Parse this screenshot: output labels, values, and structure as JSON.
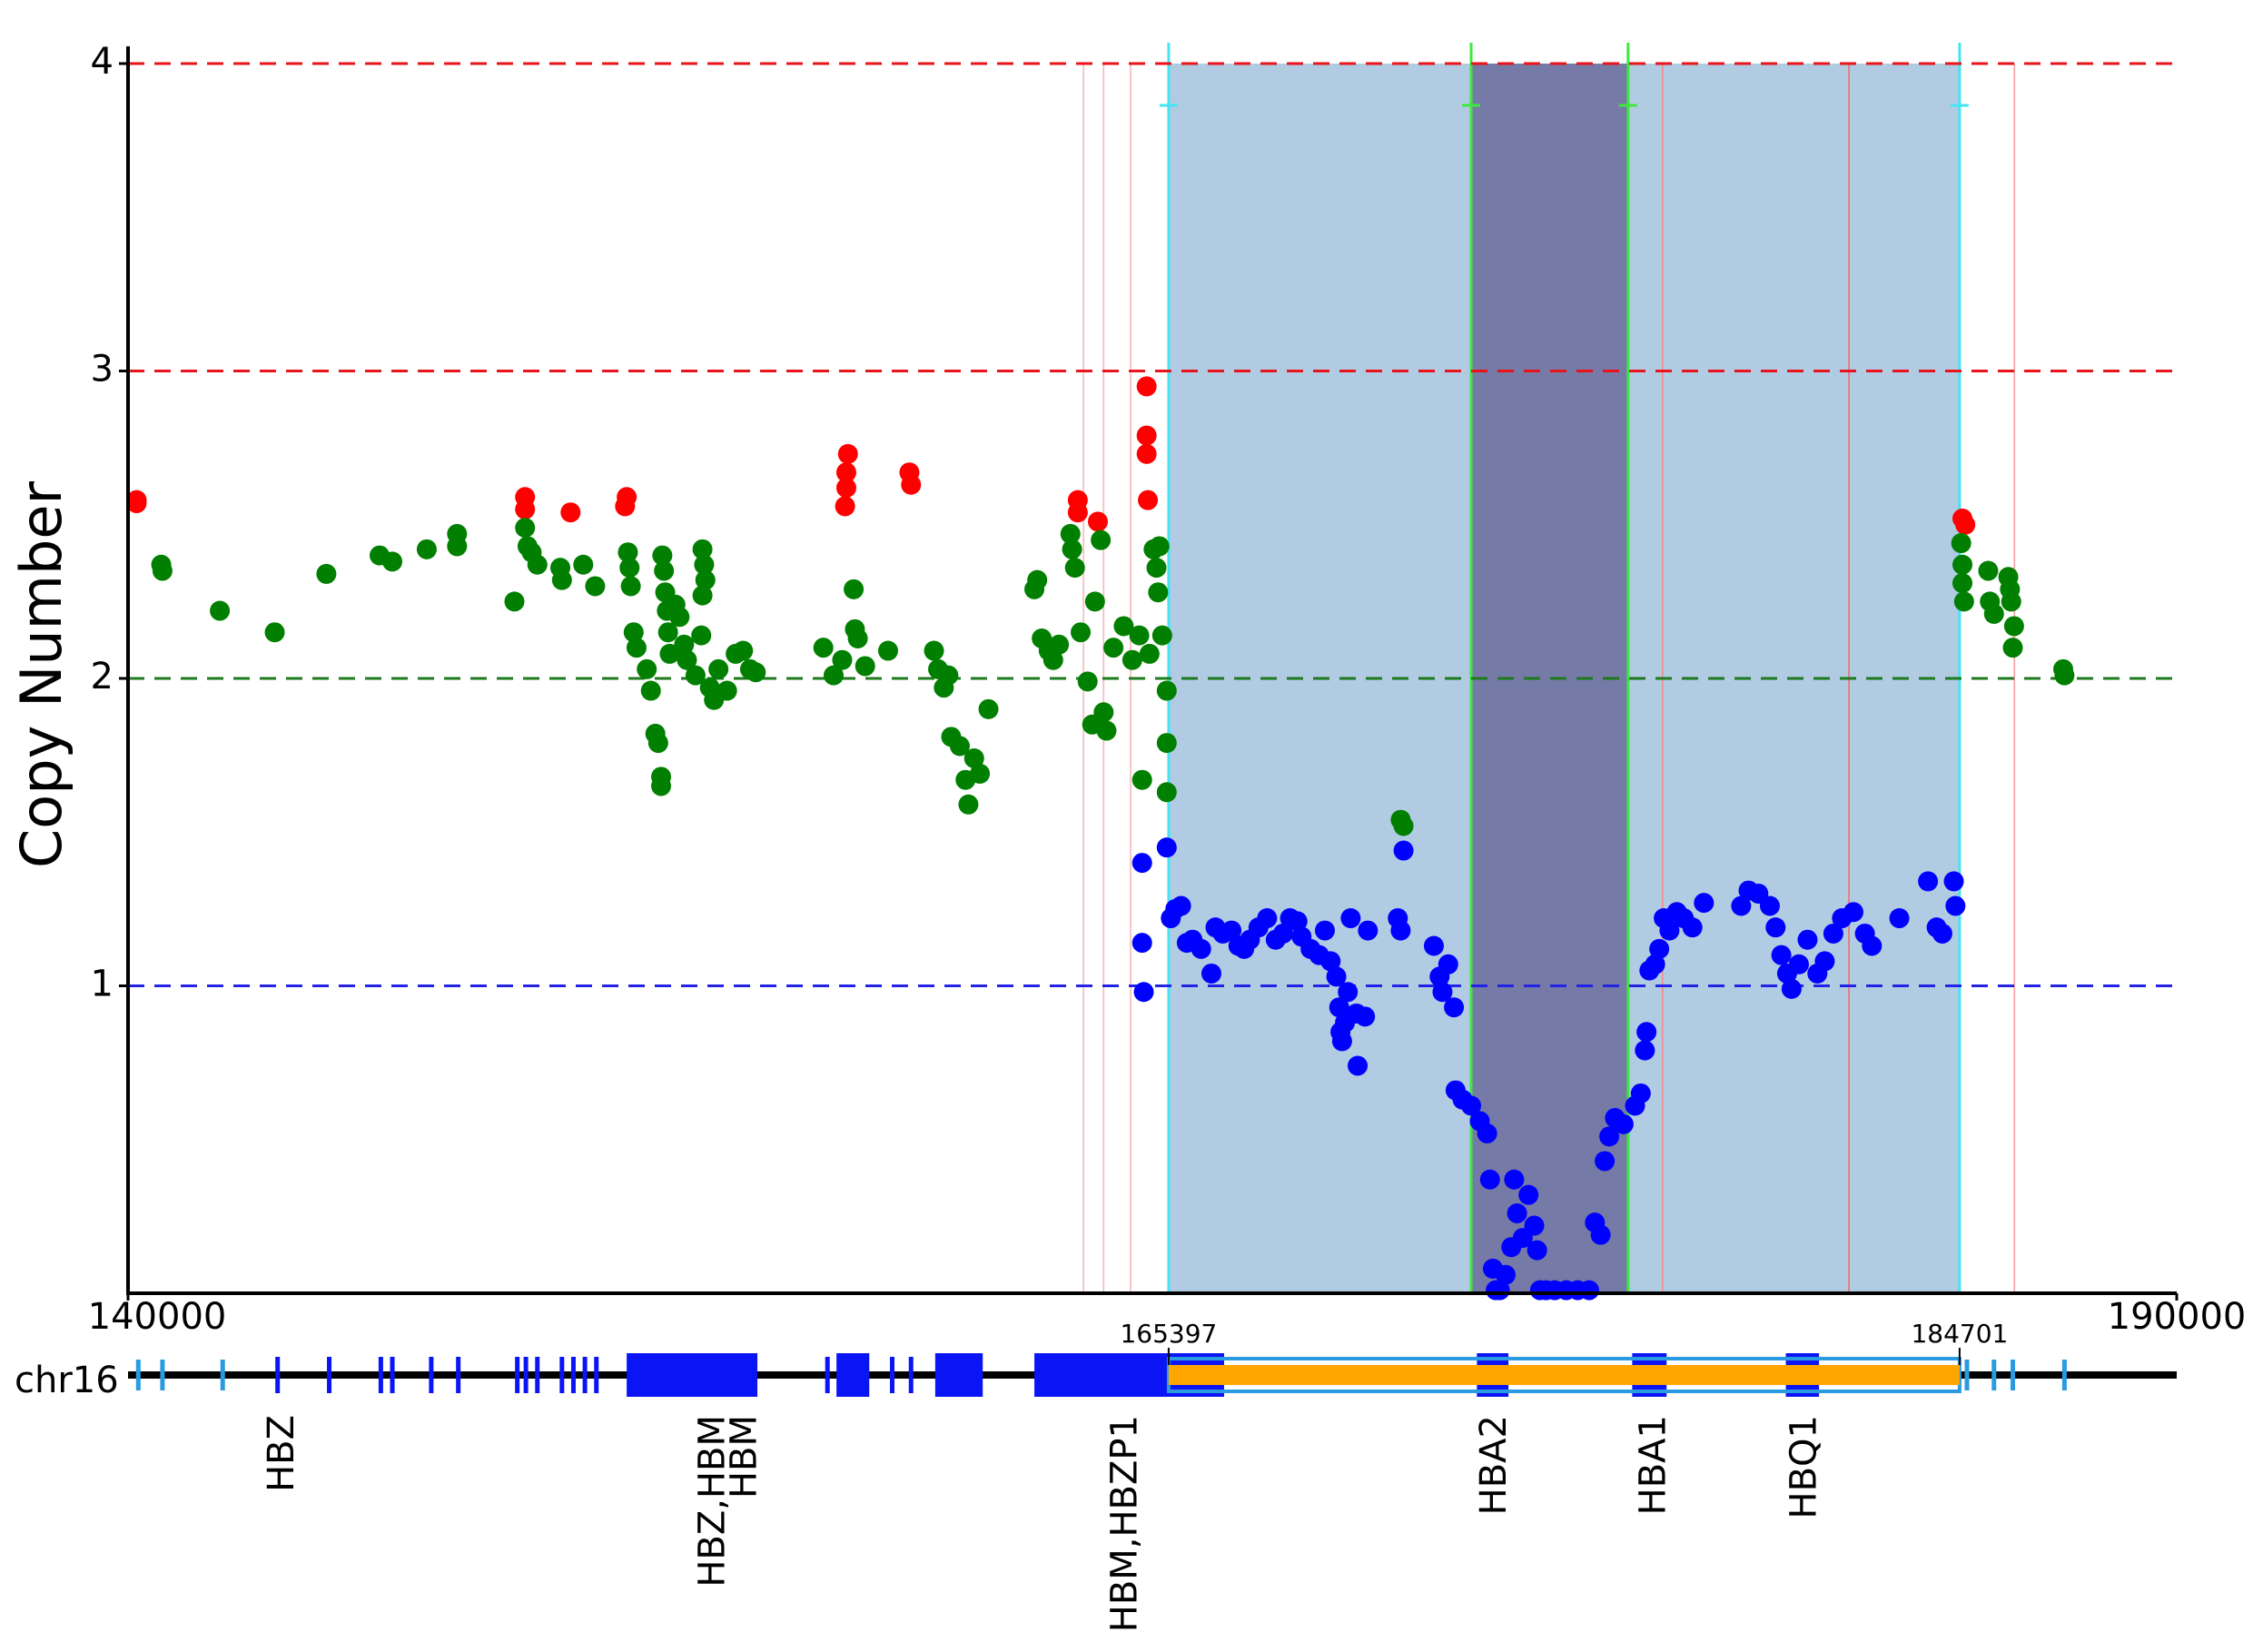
{
  "chart_data": {
    "type": "scatter",
    "y_label": "Copy Number",
    "xlim": [
      140000,
      190000
    ],
    "xticks": [
      140000,
      190000
    ],
    "ylim": [
      0,
      4
    ],
    "yticks": [
      1,
      2,
      3,
      4
    ],
    "reference_lines": [
      {
        "value": 4,
        "color": "#e8141c"
      },
      {
        "value": 3,
        "color": "#e8141c"
      },
      {
        "value": 2,
        "color": "#1d7a1d"
      },
      {
        "value": 1,
        "color": "#2323e6"
      }
    ],
    "regions": [
      {
        "start": 165397,
        "end": 184701,
        "fill": "#b1cbe3",
        "edge": "#45e4f4",
        "bar_color": "#ffa500",
        "outline": "#2a9be0"
      },
      {
        "start": 172780,
        "end": 176610,
        "fill": "#767aa6",
        "edge": "#3ee83e"
      }
    ],
    "marker_lines": [
      {
        "x": 163320,
        "color": "#f7b9b9"
      },
      {
        "x": 163810,
        "color": "#f7b9b9"
      },
      {
        "x": 164470,
        "color": "#f7b9b9"
      },
      {
        "x": 177450,
        "color": "#f08c8c"
      },
      {
        "x": 182000,
        "color": "#ea7070"
      },
      {
        "x": 186040,
        "color": "#f3a0a0"
      }
    ],
    "series": [
      {
        "color": "#ff0000",
        "x": [
          140210,
          140210,
          149690,
          149690,
          150800,
          152170,
          152130,
          157570,
          157530,
          157530,
          157500,
          159070,
          159110,
          163180,
          163180,
          163670,
          164860,
          164860,
          164860,
          164890,
          184770,
          184840
        ],
        "values": [
          2.58,
          2.57,
          2.59,
          2.55,
          2.54,
          2.59,
          2.56,
          2.73,
          2.67,
          2.62,
          2.56,
          2.67,
          2.63,
          2.58,
          2.54,
          2.51,
          2.95,
          2.79,
          2.73,
          2.58,
          2.52,
          2.5
        ]
      },
      {
        "color": "#007f00",
        "x": [
          140810,
          140840,
          142240,
          143580,
          144840,
          146140,
          146450,
          147290,
          148030,
          148030,
          149430,
          149690,
          149750,
          149850,
          149990,
          150550,
          150590,
          151110,
          151400,
          152200,
          152240,
          152270,
          152340,
          152410,
          152660,
          152760,
          152870,
          152940,
          153010,
          153010,
          153040,
          153080,
          153110,
          153150,
          153180,
          153220,
          153360,
          153460,
          153570,
          153640,
          153850,
          154020,
          154060,
          154090,
          154020,
          153990,
          154200,
          154300,
          154410,
          154620,
          154830,
          155010,
          155180,
          155320,
          156970,
          157220,
          157430,
          157710,
          157740,
          157810,
          157990,
          158550,
          159670,
          159770,
          159910,
          160020,
          160090,
          160300,
          160440,
          160510,
          160650,
          160790,
          161000,
          162120,
          162190,
          162300,
          162470,
          162580,
          162720,
          163000,
          163040,
          163110,
          163250,
          163420,
          163530,
          163600,
          163740,
          163810,
          163880,
          164050,
          164300,
          164510,
          164680,
          164750,
          164930,
          165030,
          165100,
          165140,
          165170,
          165240,
          165350,
          165350,
          165350,
          171060,
          171130,
          184740,
          184770,
          184770,
          184810,
          185400,
          185440,
          185540,
          185890,
          185930,
          185960,
          186030,
          186000,
          187230,
          187260
        ],
        "values": [
          2.37,
          2.35,
          2.22,
          2.15,
          2.34,
          2.4,
          2.38,
          2.42,
          2.47,
          2.43,
          2.25,
          2.49,
          2.43,
          2.41,
          2.37,
          2.36,
          2.32,
          2.37,
          2.3,
          2.41,
          2.36,
          2.3,
          2.15,
          2.1,
          2.03,
          1.96,
          1.82,
          1.79,
          1.68,
          1.65,
          2.4,
          2.35,
          2.28,
          2.22,
          2.15,
          2.08,
          2.24,
          2.2,
          2.11,
          2.06,
          2.01,
          2.42,
          2.37,
          2.32,
          2.27,
          2.14,
          1.97,
          1.93,
          2.03,
          1.96,
          2.08,
          2.09,
          2.03,
          2.02,
          2.1,
          2.01,
          2.06,
          2.29,
          2.16,
          2.13,
          2.04,
          2.09,
          2.09,
          2.03,
          1.97,
          2.01,
          1.81,
          1.78,
          1.67,
          1.59,
          1.74,
          1.69,
          1.9,
          2.29,
          2.32,
          2.13,
          2.09,
          2.06,
          2.11,
          2.47,
          2.42,
          2.36,
          2.15,
          1.99,
          1.85,
          2.25,
          2.45,
          1.89,
          1.83,
          2.1,
          2.17,
          2.06,
          2.14,
          1.67,
          2.08,
          2.42,
          2.36,
          2.28,
          2.43,
          2.14,
          1.96,
          1.79,
          1.63,
          1.54,
          1.52,
          2.44,
          2.37,
          2.31,
          2.25,
          2.35,
          2.25,
          2.21,
          2.33,
          2.29,
          2.25,
          2.17,
          2.1,
          2.03,
          2.01
        ]
      },
      {
        "color": "#0000ff",
        "x": [
          164750,
          164750,
          164790,
          165350,
          165450,
          165560,
          165700,
          165840,
          165980,
          166190,
          166440,
          166540,
          166720,
          166930,
          167100,
          167240,
          167380,
          167590,
          167800,
          168010,
          168190,
          168360,
          168540,
          168640,
          168860,
          169070,
          169210,
          169350,
          169490,
          169560,
          169590,
          169630,
          169700,
          169770,
          169840,
          169980,
          170010,
          170190,
          170260,
          170990,
          171060,
          171130,
          171870,
          172010,
          172080,
          172220,
          172360,
          172400,
          172570,
          172780,
          172990,
          173170,
          173240,
          173310,
          173380,
          173480,
          173620,
          173760,
          173830,
          173900,
          174040,
          174180,
          174320,
          174390,
          174460,
          174610,
          174820,
          175100,
          175380,
          175660,
          175800,
          175940,
          176040,
          176150,
          176290,
          176500,
          176780,
          176920,
          177020,
          177060,
          177130,
          177270,
          177370,
          177480,
          177620,
          177800,
          177970,
          178180,
          178460,
          179370,
          179550,
          179790,
          180070,
          180210,
          180350,
          180490,
          180600,
          180780,
          180990,
          181230,
          181410,
          181620,
          181830,
          182110,
          182390,
          182560,
          183230,
          183930,
          184140,
          184280,
          184560,
          184600
        ],
        "values": [
          1.4,
          1.14,
          0.98,
          1.45,
          1.22,
          1.25,
          1.26,
          1.14,
          1.15,
          1.12,
          1.04,
          1.19,
          1.17,
          1.18,
          1.13,
          1.12,
          1.15,
          1.19,
          1.22,
          1.15,
          1.17,
          1.22,
          1.21,
          1.16,
          1.12,
          1.1,
          1.18,
          1.08,
          1.03,
          0.93,
          0.85,
          0.82,
          0.88,
          0.98,
          1.22,
          0.91,
          0.74,
          0.9,
          1.18,
          1.22,
          1.18,
          1.44,
          1.13,
          1.03,
          0.98,
          1.07,
          0.93,
          0.66,
          0.63,
          0.61,
          0.56,
          0.52,
          0.37,
          0.08,
          0.01,
          0.01,
          0.06,
          0.15,
          0.37,
          0.26,
          0.18,
          0.32,
          0.22,
          0.14,
          0.01,
          0.01,
          0.01,
          0.01,
          0.01,
          0.01,
          0.23,
          0.19,
          0.43,
          0.51,
          0.57,
          0.55,
          0.61,
          0.65,
          0.79,
          0.85,
          1.05,
          1.07,
          1.12,
          1.22,
          1.18,
          1.24,
          1.22,
          1.19,
          1.27,
          1.26,
          1.31,
          1.3,
          1.26,
          1.19,
          1.1,
          1.04,
          0.99,
          1.07,
          1.15,
          1.04,
          1.08,
          1.17,
          1.22,
          1.24,
          1.17,
          1.13,
          1.22,
          1.34,
          1.19,
          1.17,
          1.34,
          1.26
        ]
      }
    ],
    "gene_track": {
      "label": "chr16",
      "block_color": "#0a14f5",
      "minor_color": "#2a9be0",
      "blocks": [
        [
          152170,
          155360
        ],
        [
          157290,
          158090
        ],
        [
          159700,
          160860
        ],
        [
          162120,
          166750
        ],
        [
          172920,
          173690
        ],
        [
          176710,
          177550
        ],
        [
          180460,
          181270
        ]
      ],
      "ticks": [
        143650,
        144910,
        146170,
        146450,
        147400,
        148060,
        149500,
        149710,
        149990,
        150590,
        150870,
        151150,
        151430,
        157070,
        157850,
        158650,
        159110
      ],
      "minor_ticks": [
        140250,
        140840,
        142310,
        184880,
        185540,
        186000,
        187260
      ],
      "genes": [
        {
          "label": "HBZ",
          "x": 143790
        },
        {
          "label": "HBZ,HBM",
          "x": 154310
        },
        {
          "label": "HBM",
          "x": 155080
        },
        {
          "label": "HBM,HBZP1",
          "x": 164370
        },
        {
          "label": "HBA2",
          "x": 173380
        },
        {
          "label": "HBA1",
          "x": 177270
        },
        {
          "label": "HBQ1",
          "x": 180950
        }
      ]
    }
  }
}
